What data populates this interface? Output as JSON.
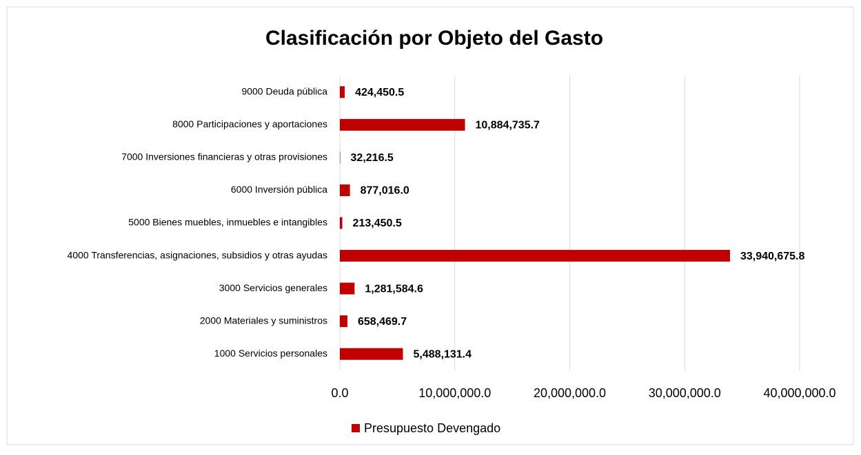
{
  "chart_data": {
    "type": "bar",
    "orientation": "horizontal",
    "title": "Clasificación por Objeto del Gasto",
    "categories": [
      "1000 Servicios personales",
      "2000 Materiales y suministros",
      "3000 Servicios generales",
      "4000 Transferencias, asignaciones, subsidios y otras ayudas",
      "5000 Bienes muebles, inmuebles e intangibles",
      "6000 Inversión pública",
      "7000 Inversiones financieras y otras provisiones",
      "8000 Participaciones y aportaciones",
      "9000 Deuda pública"
    ],
    "series": [
      {
        "name": "Presupuesto Devengado",
        "color": "#c00000",
        "values": [
          5488131.4,
          658469.7,
          1281584.6,
          33940675.8,
          213450.5,
          877016.0,
          32216.5,
          10884735.7,
          424450.5
        ],
        "value_labels": [
          "5,488,131.4",
          "658,469.7",
          "1,281,584.6",
          "33,940,675.8",
          "213,450.5",
          "877,016.0",
          "32,216.5",
          "10,884,735.7",
          "424,450.5"
        ]
      }
    ],
    "xlim": [
      0,
      40000000
    ],
    "xticks": [
      {
        "value": 0,
        "label": "0.0"
      },
      {
        "value": 10000000,
        "label": "10,000,000.0"
      },
      {
        "value": 20000000,
        "label": "20,000,000.0"
      },
      {
        "value": 30000000,
        "label": "30,000,000.0"
      },
      {
        "value": 40000000,
        "label": "40,000,000.0"
      }
    ],
    "grid": true,
    "legend": "bottom"
  }
}
